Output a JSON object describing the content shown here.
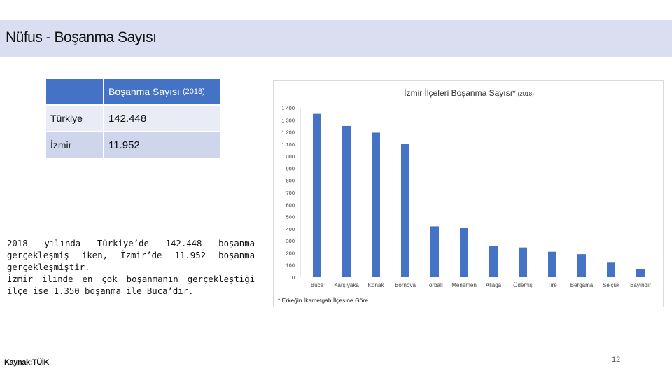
{
  "page": {
    "title": "Nüfus - Boşanma Sayısı",
    "source": "Kaynak:TÜİK",
    "page_number": "12"
  },
  "summary_table": {
    "header": {
      "col1": "",
      "col2": "Boşanma Sayısı",
      "col2_note": "(2018)"
    },
    "rows": [
      {
        "label": "Türkiye",
        "value": "142.448"
      },
      {
        "label": "İzmir",
        "value": "11.952"
      }
    ]
  },
  "description": {
    "p1": "2018 yılında Türkiye’de 142.448 boşanma gerçekleşmiş iken, İzmir’de 11.952 boşanma gerçekleşmiştir.",
    "p2": "İzmir ilinde en çok boşanmanın gerçekleştiği ilçe ise 1.350 boşanma ile Buca’dır."
  },
  "chart_data": {
    "type": "bar",
    "title": "İzmir İlçeleri Boşanma Sayısı*",
    "title_note": "(2018)",
    "footnote": "* Erkeğin İkametgah İlçesine Göre",
    "categories": [
      "Buca",
      "Karşıyaka",
      "Konak",
      "Bornova",
      "Torbalı",
      "Menemen",
      "Aliağa",
      "Ödemiş",
      "Tire",
      "Bergama",
      "Selçuk",
      "Bayındır"
    ],
    "values": [
      1350,
      1250,
      1195,
      1100,
      420,
      410,
      260,
      245,
      210,
      190,
      120,
      65
    ],
    "ylim": [
      0,
      1400
    ],
    "y_ticks": [
      "0",
      "100",
      "200",
      "300",
      "400",
      "500",
      "600",
      "700",
      "800",
      "900",
      "1 000",
      "1 100",
      "1 200",
      "1 300",
      "1 400"
    ],
    "grid": false,
    "bar_color": "#4472c4",
    "xlabel": "",
    "ylabel": ""
  }
}
